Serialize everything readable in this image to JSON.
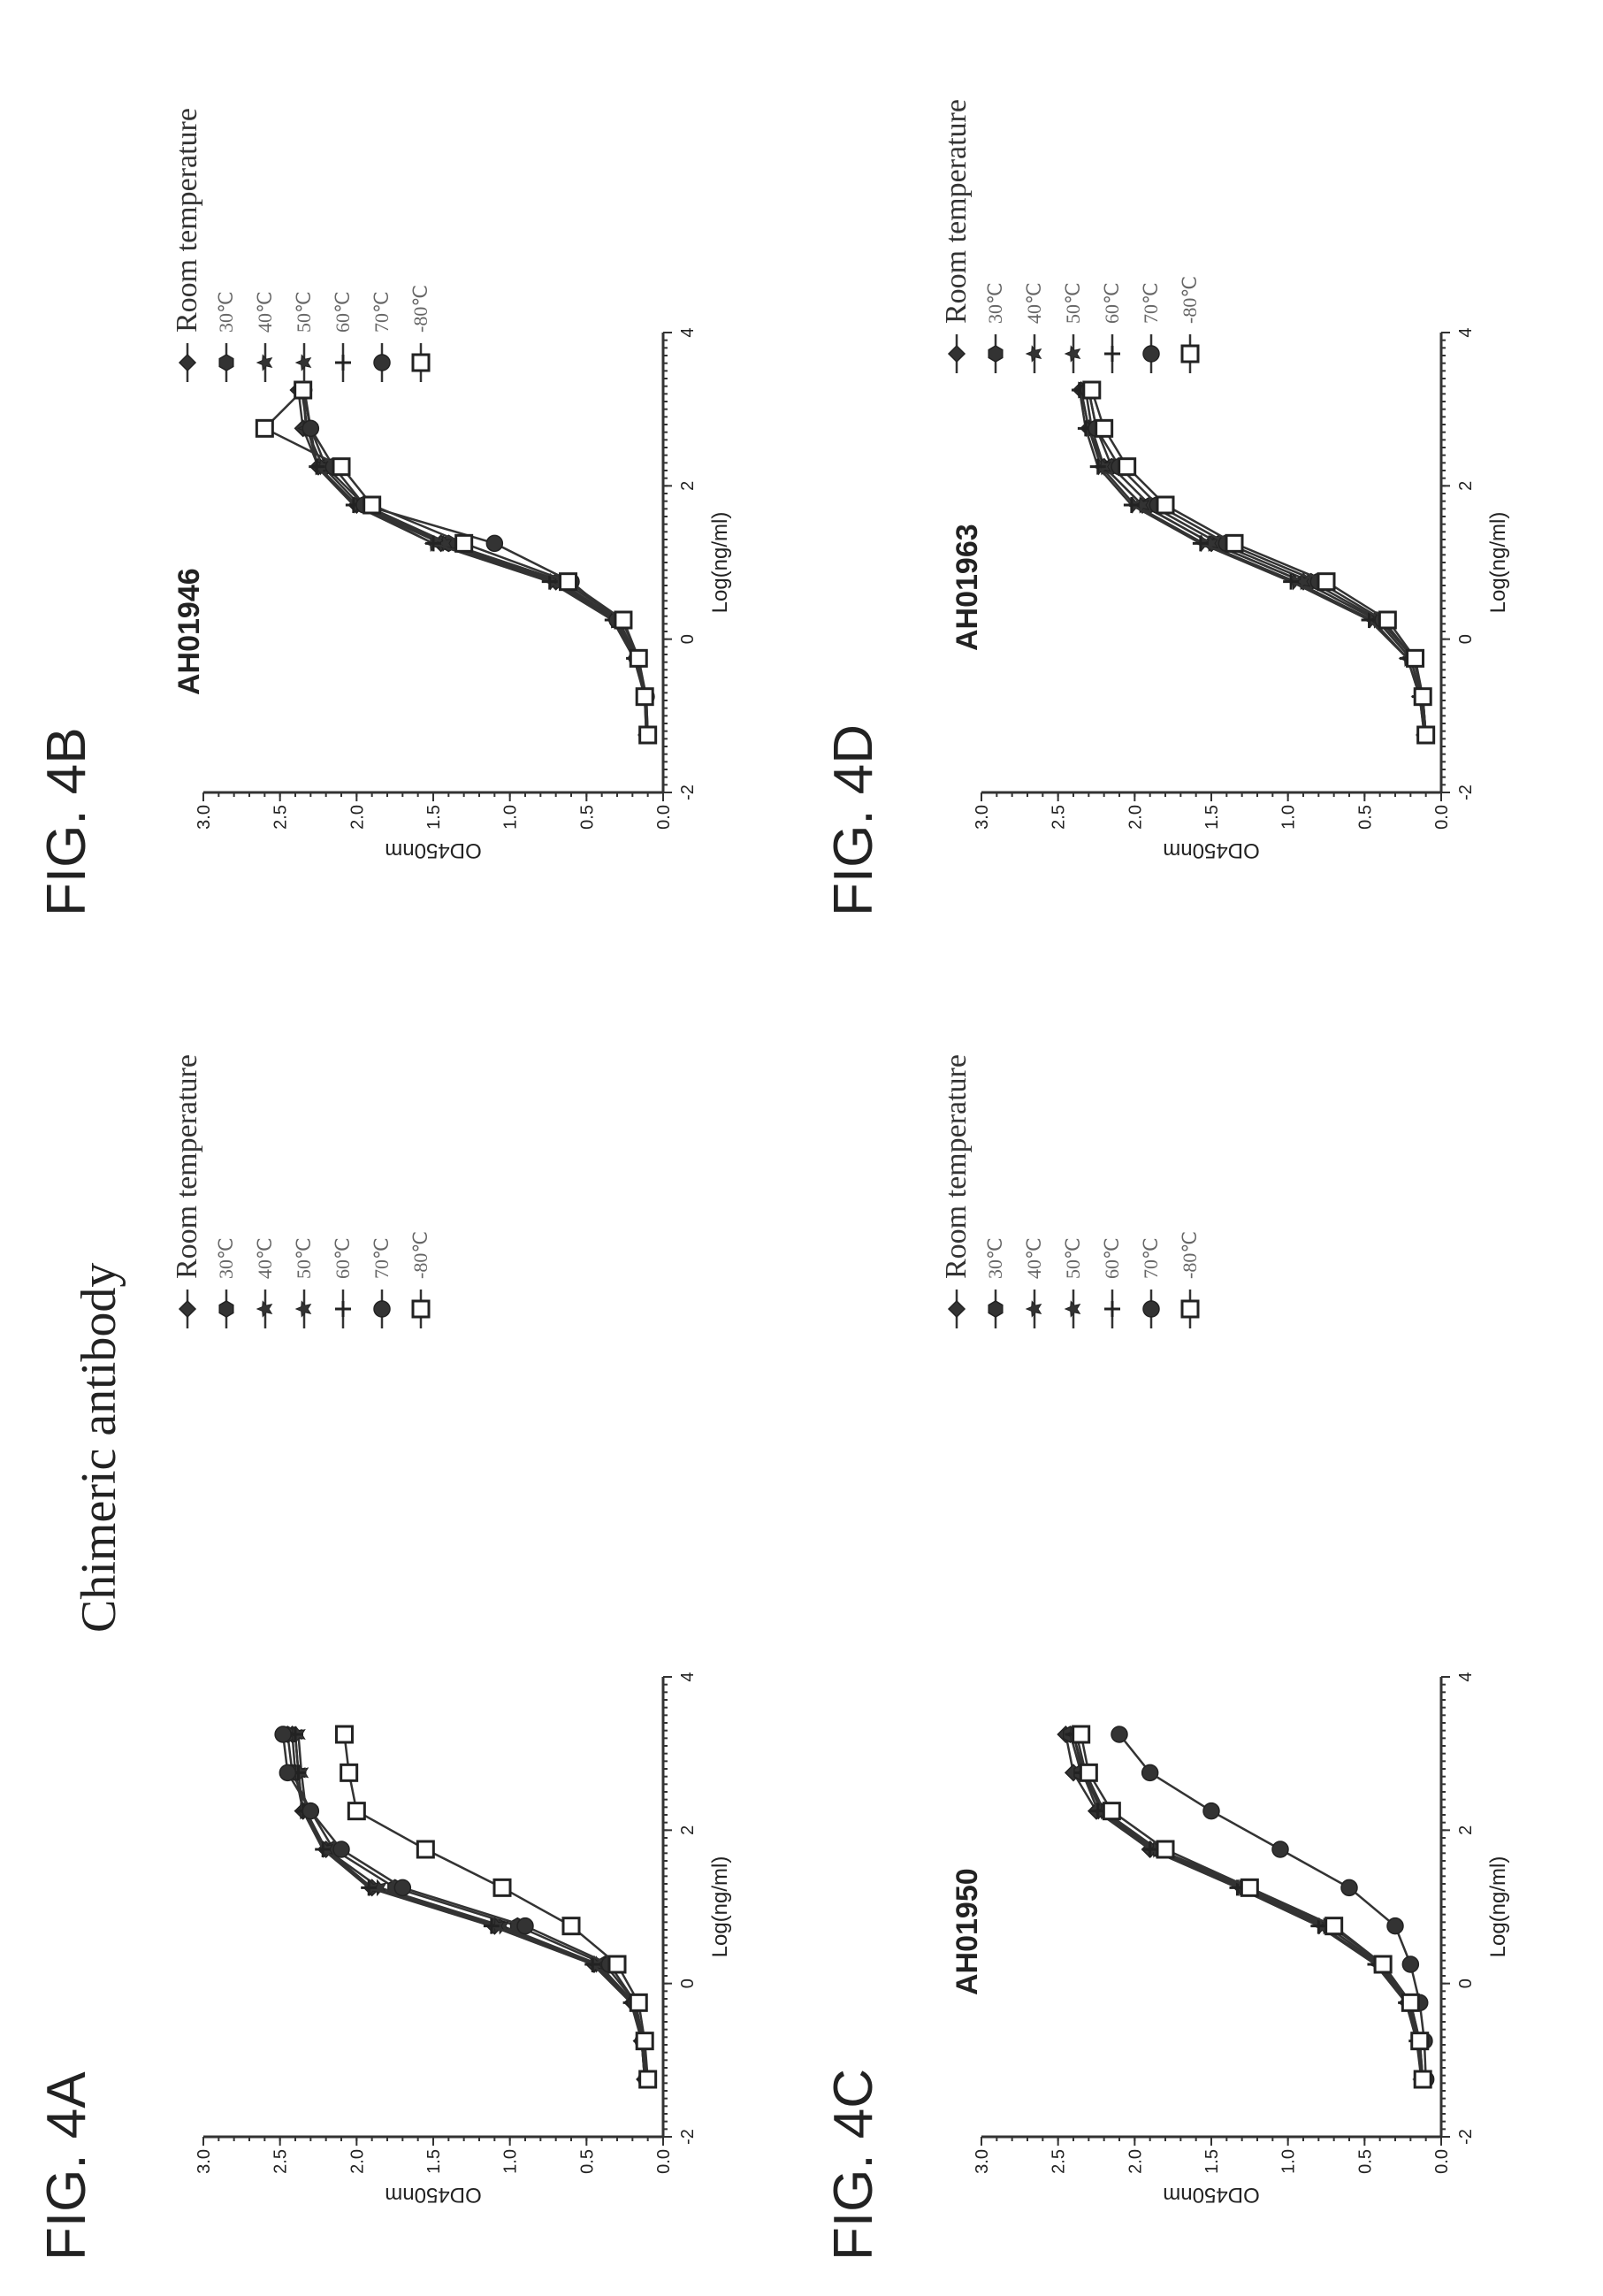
{
  "chart_data": [
    {
      "id": "4A",
      "type": "line",
      "figure_label": "FIG. 4A",
      "title": "Chimeric antibody",
      "xlabel": "Log(ng/ml)",
      "ylabel": "OD450nm",
      "xlim": [
        -2,
        4
      ],
      "ylim": [
        0.0,
        3.0
      ],
      "xticks": [
        "-2",
        "0",
        "2",
        "4"
      ],
      "yticks": [
        "0.0",
        "0.5",
        "1.0",
        "1.5",
        "2.0",
        "2.5",
        "3.0"
      ],
      "legend": "right",
      "x": [
        -1.25,
        -0.75,
        -0.25,
        0.25,
        0.75,
        1.25,
        1.75,
        2.25,
        2.75,
        3.25
      ],
      "series": [
        {
          "name": "Room temperature",
          "marker": "diamond",
          "values": [
            0.12,
            0.14,
            0.2,
            0.45,
            1.1,
            1.9,
            2.2,
            2.35,
            2.4,
            2.42
          ]
        },
        {
          "name": "30℃",
          "marker": "hexagon",
          "values": [
            0.11,
            0.13,
            0.18,
            0.38,
            0.95,
            1.75,
            2.15,
            2.3,
            2.42,
            2.45
          ]
        },
        {
          "name": "40℃",
          "marker": "star",
          "values": [
            0.12,
            0.14,
            0.19,
            0.42,
            1.05,
            1.85,
            2.2,
            2.35,
            2.38,
            2.4
          ]
        },
        {
          "name": "50℃",
          "marker": "star",
          "values": [
            0.11,
            0.13,
            0.2,
            0.44,
            1.08,
            1.9,
            2.2,
            2.33,
            2.36,
            2.38
          ]
        },
        {
          "name": "60℃",
          "marker": "plus",
          "values": [
            0.12,
            0.14,
            0.21,
            0.46,
            1.12,
            1.92,
            2.22,
            2.35,
            2.38,
            2.4
          ]
        },
        {
          "name": "70℃",
          "marker": "circle",
          "values": [
            0.11,
            0.13,
            0.18,
            0.35,
            0.9,
            1.7,
            2.1,
            2.3,
            2.45,
            2.48
          ]
        },
        {
          "name": "-80℃",
          "marker": "square",
          "values": [
            0.1,
            0.12,
            0.16,
            0.3,
            0.6,
            1.05,
            1.55,
            2.0,
            2.05,
            2.08
          ]
        }
      ]
    },
    {
      "id": "4B",
      "type": "line",
      "figure_label": "FIG. 4B",
      "title": "AH01946",
      "xlabel": "Log(ng/ml)",
      "ylabel": "OD450nm",
      "xlim": [
        -2,
        4
      ],
      "ylim": [
        0.0,
        3.0
      ],
      "xticks": [
        "-2",
        "0",
        "2",
        "4"
      ],
      "yticks": [
        "0.0",
        "0.5",
        "1.0",
        "1.5",
        "2.0",
        "2.5",
        "3.0"
      ],
      "legend": "right",
      "x": [
        -1.25,
        -0.75,
        -0.25,
        0.25,
        0.75,
        1.25,
        1.75,
        2.25,
        2.75,
        3.25
      ],
      "series": [
        {
          "name": "Room temperature",
          "marker": "diamond",
          "values": [
            0.1,
            0.12,
            0.18,
            0.3,
            0.7,
            1.45,
            2.0,
            2.25,
            2.35,
            2.38
          ]
        },
        {
          "name": "30℃",
          "marker": "hexagon",
          "values": [
            0.1,
            0.11,
            0.16,
            0.27,
            0.65,
            1.4,
            1.95,
            2.2,
            2.3,
            2.35
          ]
        },
        {
          "name": "40℃",
          "marker": "star",
          "values": [
            0.11,
            0.12,
            0.18,
            0.32,
            0.72,
            1.5,
            2.0,
            2.25,
            2.32,
            2.36
          ]
        },
        {
          "name": "50℃",
          "marker": "star",
          "values": [
            0.1,
            0.12,
            0.17,
            0.29,
            0.68,
            1.42,
            1.98,
            2.22,
            2.33,
            2.35
          ]
        },
        {
          "name": "60℃",
          "marker": "plus",
          "values": [
            0.11,
            0.12,
            0.19,
            0.33,
            0.74,
            1.5,
            2.02,
            2.26,
            2.3,
            2.34
          ]
        },
        {
          "name": "70℃",
          "marker": "circle",
          "values": [
            0.1,
            0.11,
            0.17,
            0.3,
            0.6,
            1.1,
            1.95,
            2.15,
            2.3,
            2.35
          ]
        },
        {
          "name": "-80℃",
          "marker": "square",
          "values": [
            0.1,
            0.12,
            0.16,
            0.26,
            0.62,
            1.3,
            1.9,
            2.1,
            2.6,
            2.35
          ]
        }
      ]
    },
    {
      "id": "4C",
      "type": "line",
      "figure_label": "FIG. 4C",
      "title": "AH01950",
      "xlabel": "Log(ng/ml)",
      "ylabel": "OD450nm",
      "xlim": [
        -2,
        4
      ],
      "ylim": [
        0.0,
        3.0
      ],
      "xticks": [
        "-2",
        "0",
        "2",
        "4"
      ],
      "yticks": [
        "0.0",
        "0.5",
        "1.0",
        "1.5",
        "2.0",
        "2.5",
        "3.0"
      ],
      "legend": "right",
      "x": [
        -1.25,
        -0.75,
        -0.25,
        0.25,
        0.75,
        1.25,
        1.75,
        2.25,
        2.75,
        3.25
      ],
      "series": [
        {
          "name": "Room temperature",
          "marker": "diamond",
          "values": [
            0.12,
            0.15,
            0.22,
            0.4,
            0.75,
            1.3,
            1.9,
            2.25,
            2.4,
            2.45
          ]
        },
        {
          "name": "30℃",
          "marker": "hexagon",
          "values": [
            0.12,
            0.14,
            0.2,
            0.38,
            0.72,
            1.25,
            1.85,
            2.2,
            2.35,
            2.42
          ]
        },
        {
          "name": "40℃",
          "marker": "star",
          "values": [
            0.13,
            0.15,
            0.22,
            0.42,
            0.78,
            1.3,
            1.88,
            2.22,
            2.33,
            2.4
          ]
        },
        {
          "name": "50℃",
          "marker": "star",
          "values": [
            0.12,
            0.15,
            0.21,
            0.4,
            0.75,
            1.28,
            1.86,
            2.2,
            2.32,
            2.38
          ]
        },
        {
          "name": "60℃",
          "marker": "plus",
          "values": [
            0.13,
            0.16,
            0.23,
            0.43,
            0.8,
            1.33,
            1.9,
            2.24,
            2.34,
            2.4
          ]
        },
        {
          "name": "70℃",
          "marker": "circle",
          "values": [
            0.1,
            0.11,
            0.14,
            0.2,
            0.3,
            0.6,
            1.05,
            1.5,
            1.9,
            2.1
          ]
        },
        {
          "name": "-80℃",
          "marker": "square",
          "values": [
            0.12,
            0.14,
            0.2,
            0.38,
            0.7,
            1.25,
            1.8,
            2.15,
            2.3,
            2.35
          ]
        }
      ]
    },
    {
      "id": "4D",
      "type": "line",
      "figure_label": "FIG. 4D",
      "title": "AH01963",
      "xlabel": "Log(ng/ml)",
      "ylabel": "OD450nm",
      "xlim": [
        -2,
        4
      ],
      "ylim": [
        0.0,
        3.0
      ],
      "xticks": [
        "-2",
        "0",
        "2",
        "4"
      ],
      "yticks": [
        "0.0",
        "0.5",
        "1.0",
        "1.5",
        "2.0",
        "2.5",
        "3.0"
      ],
      "legend": "right",
      "x": [
        -1.25,
        -0.75,
        -0.25,
        0.25,
        0.75,
        1.25,
        1.75,
        2.25,
        2.75,
        3.25
      ],
      "series": [
        {
          "name": "Room temperature",
          "marker": "diamond",
          "values": [
            0.1,
            0.13,
            0.2,
            0.42,
            0.9,
            1.5,
            1.95,
            2.2,
            2.3,
            2.35
          ]
        },
        {
          "name": "30℃",
          "marker": "hexagon",
          "values": [
            0.1,
            0.12,
            0.18,
            0.4,
            0.85,
            1.45,
            1.9,
            2.15,
            2.25,
            2.3
          ]
        },
        {
          "name": "40℃",
          "marker": "star",
          "values": [
            0.11,
            0.14,
            0.22,
            0.45,
            0.95,
            1.55,
            2.0,
            2.22,
            2.3,
            2.35
          ]
        },
        {
          "name": "50℃",
          "marker": "star",
          "values": [
            0.1,
            0.13,
            0.2,
            0.42,
            0.9,
            1.5,
            1.95,
            2.2,
            2.28,
            2.32
          ]
        },
        {
          "name": "60℃",
          "marker": "plus",
          "values": [
            0.11,
            0.14,
            0.22,
            0.47,
            0.98,
            1.57,
            2.02,
            2.24,
            2.32,
            2.36
          ]
        },
        {
          "name": "70℃",
          "marker": "circle",
          "values": [
            0.1,
            0.12,
            0.18,
            0.38,
            0.8,
            1.4,
            1.85,
            2.1,
            2.25,
            2.3
          ]
        },
        {
          "name": "-80℃",
          "marker": "square",
          "values": [
            0.1,
            0.12,
            0.17,
            0.35,
            0.75,
            1.35,
            1.8,
            2.05,
            2.2,
            2.28
          ]
        }
      ]
    }
  ]
}
